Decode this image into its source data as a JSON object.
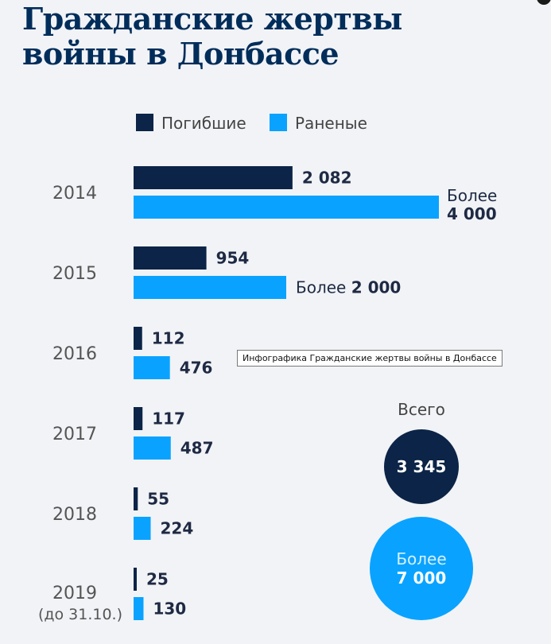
{
  "title": "Гражданские жертвы войны в Донбассе",
  "tooltip": "Инфографика Гражданские жертвы войны в Донбассе",
  "colors": {
    "killed": "#0b2447",
    "wounded": "#09a3ff",
    "text": "#1e2a44",
    "year": "#555555"
  },
  "chart_data": {
    "type": "bar",
    "orientation": "horizontal",
    "legend": [
      "Погибшие",
      "Раненые"
    ],
    "legend_position": "top",
    "categories": [
      {
        "year": "2014",
        "note": ""
      },
      {
        "year": "2015",
        "note": ""
      },
      {
        "year": "2016",
        "note": ""
      },
      {
        "year": "2017",
        "note": ""
      },
      {
        "year": "2018",
        "note": ""
      },
      {
        "year": "2019",
        "note": "(до 31.10.)"
      }
    ],
    "series": [
      {
        "name": "Погибшие",
        "values": [
          2082,
          954,
          112,
          117,
          55,
          25
        ],
        "labels": [
          {
            "prefix": "",
            "value": "2 082"
          },
          {
            "prefix": "",
            "value": "954"
          },
          {
            "prefix": "",
            "value": "112"
          },
          {
            "prefix": "",
            "value": "117"
          },
          {
            "prefix": "",
            "value": "55"
          },
          {
            "prefix": "",
            "value": "25"
          }
        ]
      },
      {
        "name": "Раненые",
        "values": [
          4000,
          2000,
          476,
          487,
          224,
          130
        ],
        "labels": [
          {
            "prefix": "Более",
            "value": "4 000",
            "stacked": true
          },
          {
            "prefix": "Более",
            "value": "2 000",
            "stacked": false
          },
          {
            "prefix": "",
            "value": "476"
          },
          {
            "prefix": "",
            "value": "487"
          },
          {
            "prefix": "",
            "value": "224"
          },
          {
            "prefix": "",
            "value": "130"
          }
        ]
      }
    ],
    "totals": {
      "label": "Всего",
      "killed": {
        "prefix": "",
        "value": "3 345"
      },
      "wounded": {
        "prefix": "Более",
        "value": "7 000"
      }
    }
  }
}
